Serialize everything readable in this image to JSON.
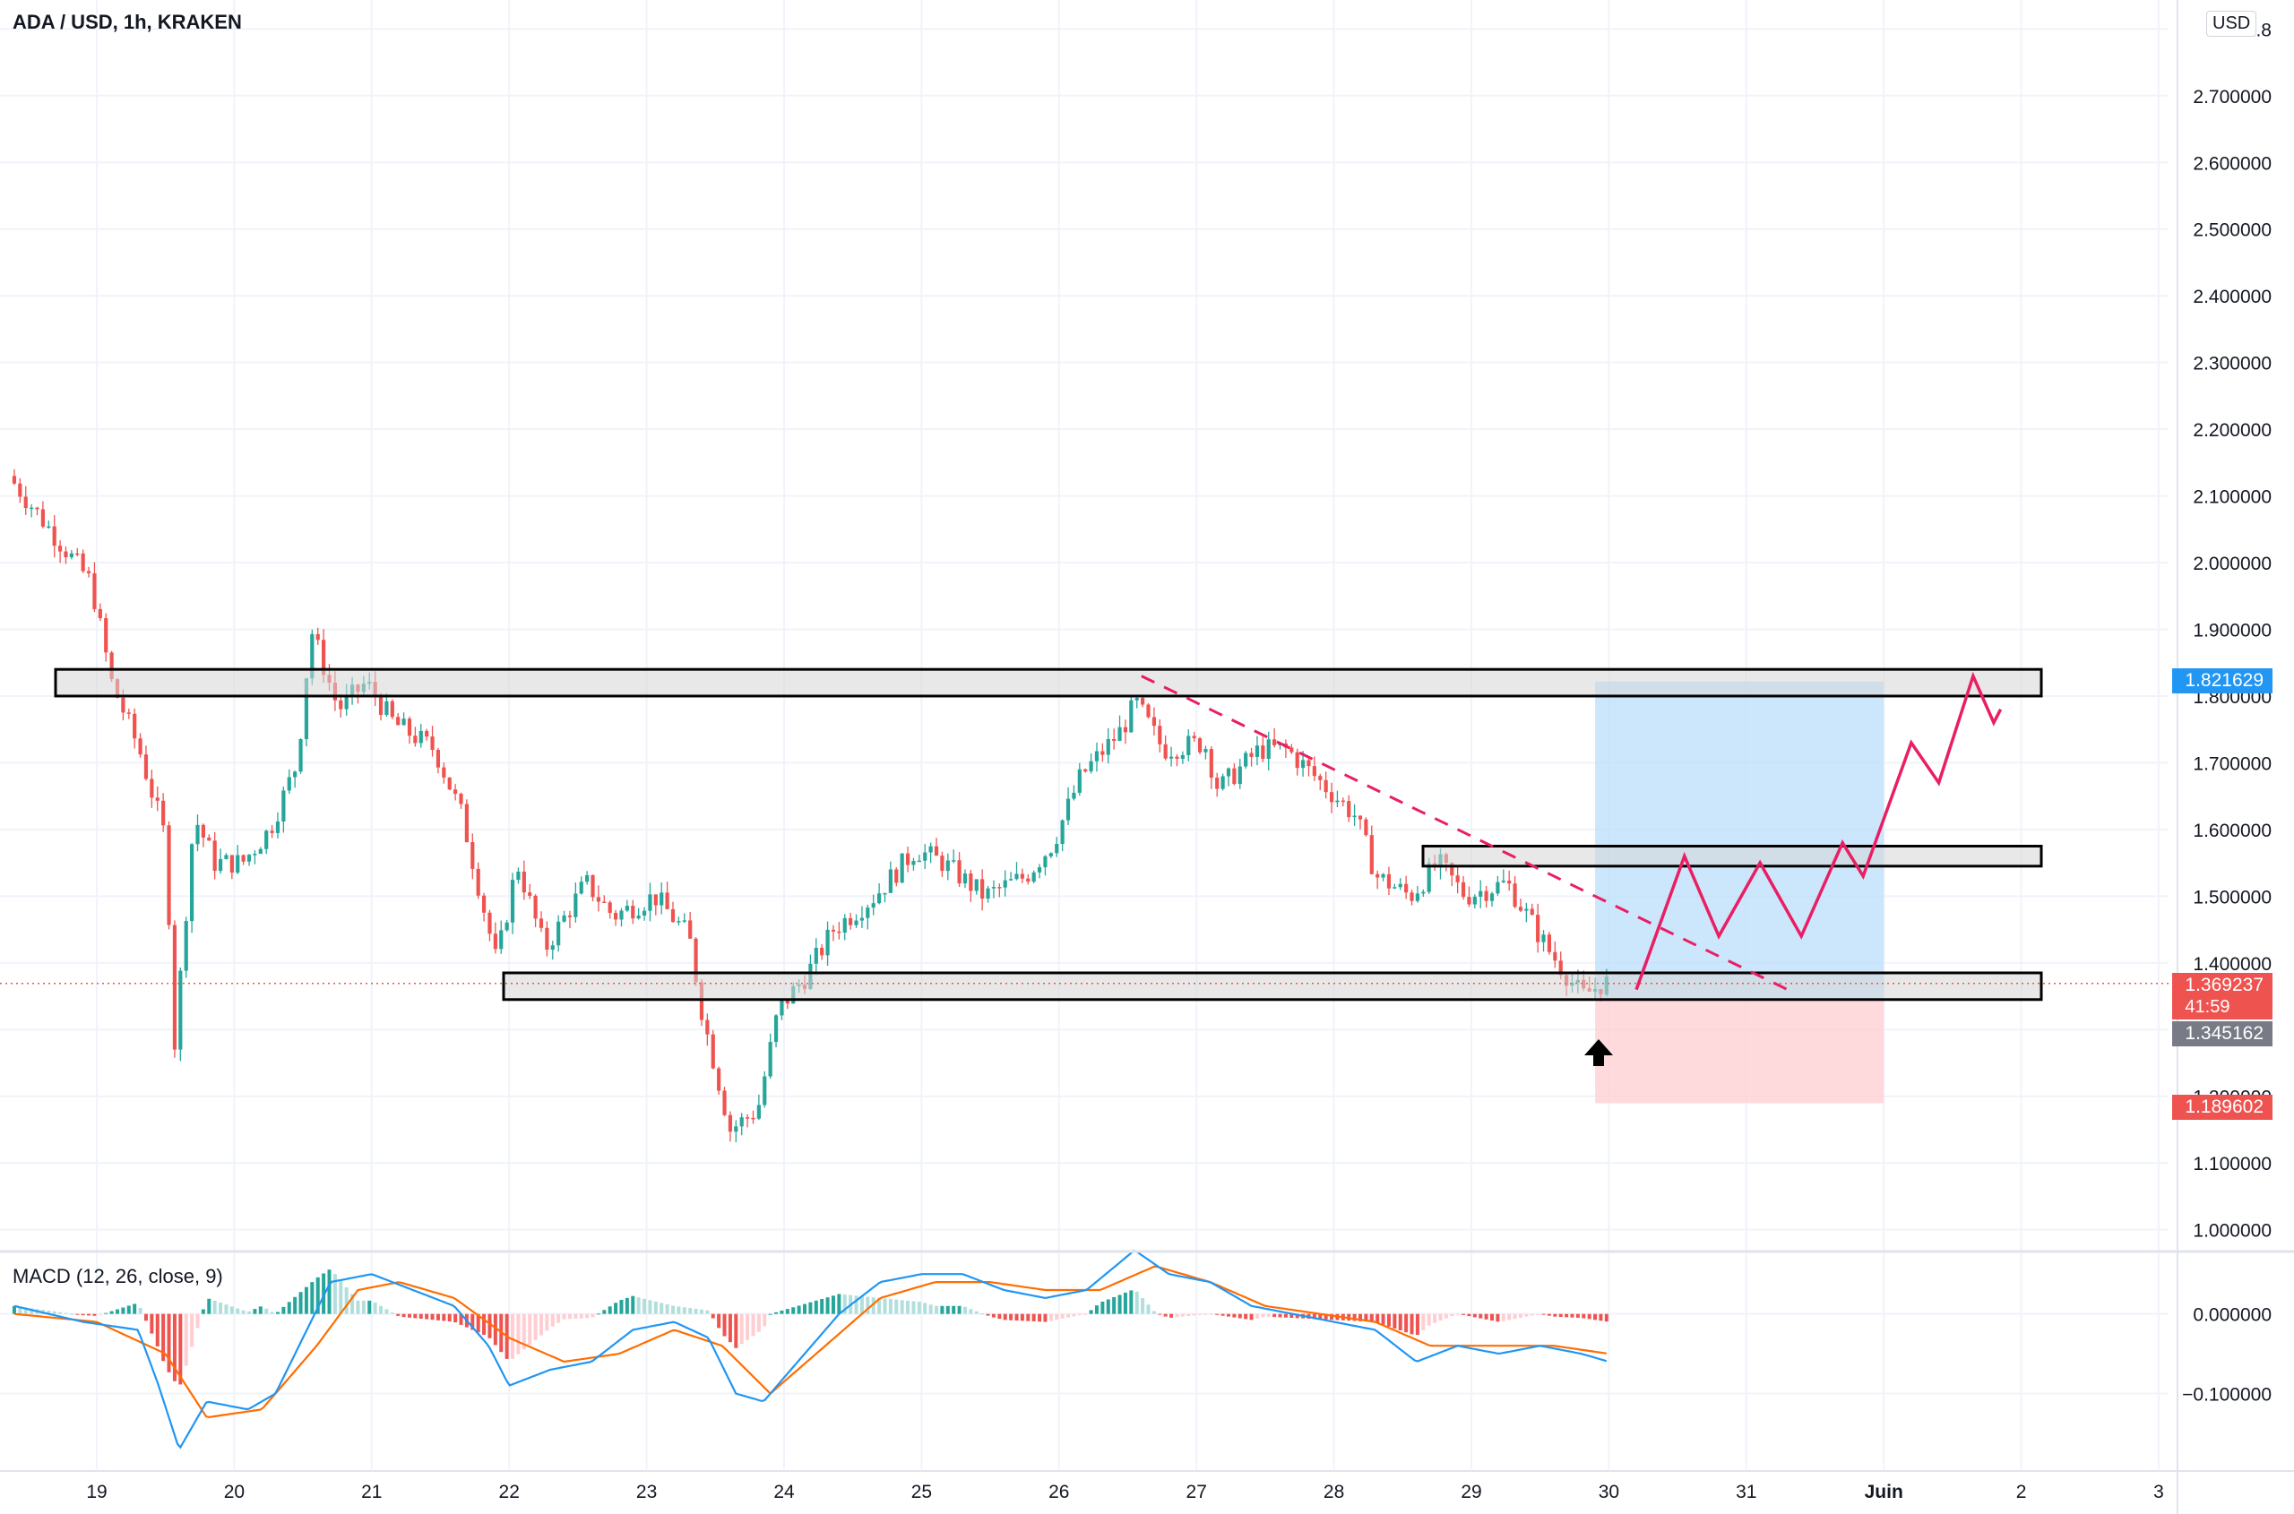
{
  "header": {
    "title": "ADA / USD, 1h, KRAKEN",
    "currency": "USD"
  },
  "macd_header": {
    "title": "MACD (12, 26, close, 9)"
  },
  "price_tags": {
    "take_profit": "1.821629",
    "current": "1.369237",
    "countdown": "41:59",
    "entry": "1.345162",
    "stop_loss": "1.189602"
  },
  "colors": {
    "up": "#26a69a",
    "down": "#ef5350",
    "profit_zone": "#bbdefb",
    "loss_zone": "#ffcdd2",
    "zone_box": "#d6d6d6",
    "projection": "#e91e63",
    "macd_line": "#2196f3",
    "signal_line": "#ff6d00"
  },
  "chart_data": [
    {
      "type": "candlestick",
      "title": "ADA / USD, 1h, KRAKEN",
      "x_ticks": [
        "19",
        "20",
        "21",
        "22",
        "23",
        "24",
        "25",
        "26",
        "27",
        "28",
        "29",
        "30",
        "31",
        "Juin",
        "2",
        "3"
      ],
      "y_ticks": [
        "1.000000",
        "1.100000",
        "1.200000",
        "1.300000",
        "1.400000",
        "1.500000",
        "1.600000",
        "1.700000",
        "1.800000",
        "1.900000",
        "2.000000",
        "2.100000",
        "2.200000",
        "2.300000",
        "2.400000",
        "2.500000",
        "2.600000",
        "2.700000",
        "2.8"
      ],
      "ylim": [
        0.97,
        2.83
      ],
      "xlim": [
        18.4,
        3.05
      ],
      "approx_close_path": [
        [
          18.4,
          2.13
        ],
        [
          18.7,
          2.05
        ],
        [
          19.0,
          1.97
        ],
        [
          19.15,
          1.82
        ],
        [
          19.35,
          1.72
        ],
        [
          19.55,
          1.58
        ],
        [
          19.6,
          1.26
        ],
        [
          19.75,
          1.62
        ],
        [
          19.9,
          1.55
        ],
        [
          20.1,
          1.55
        ],
        [
          20.3,
          1.6
        ],
        [
          20.5,
          1.7
        ],
        [
          20.6,
          1.9
        ],
        [
          20.8,
          1.78
        ],
        [
          21.0,
          1.82
        ],
        [
          21.2,
          1.76
        ],
        [
          21.5,
          1.72
        ],
        [
          21.7,
          1.62
        ],
        [
          21.95,
          1.4
        ],
        [
          22.1,
          1.55
        ],
        [
          22.3,
          1.42
        ],
        [
          22.6,
          1.52
        ],
        [
          22.8,
          1.47
        ],
        [
          23.1,
          1.5
        ],
        [
          23.35,
          1.44
        ],
        [
          23.45,
          1.32
        ],
        [
          23.65,
          1.15
        ],
        [
          23.85,
          1.18
        ],
        [
          24.0,
          1.33
        ],
        [
          24.2,
          1.38
        ],
        [
          24.4,
          1.45
        ],
        [
          24.7,
          1.5
        ],
        [
          25.0,
          1.57
        ],
        [
          25.2,
          1.55
        ],
        [
          25.5,
          1.5
        ],
        [
          25.8,
          1.53
        ],
        [
          26.0,
          1.58
        ],
        [
          26.2,
          1.68
        ],
        [
          26.5,
          1.75
        ],
        [
          26.6,
          1.79
        ],
        [
          26.8,
          1.72
        ],
        [
          27.1,
          1.73
        ],
        [
          27.2,
          1.66
        ],
        [
          27.5,
          1.72
        ],
        [
          27.7,
          1.72
        ],
        [
          27.9,
          1.68
        ],
        [
          28.2,
          1.62
        ],
        [
          28.35,
          1.53
        ],
        [
          28.6,
          1.5
        ],
        [
          28.8,
          1.55
        ],
        [
          29.0,
          1.5
        ],
        [
          29.3,
          1.52
        ],
        [
          29.6,
          1.42
        ],
        [
          29.85,
          1.35
        ],
        [
          30.0,
          1.37
        ]
      ],
      "horizontal_zones": [
        {
          "low": 1.8,
          "high": 1.84
        },
        {
          "low": 1.545,
          "high": 1.575
        },
        {
          "low": 1.345,
          "high": 1.385
        }
      ],
      "trendline": {
        "start": [
          26.6,
          1.83
        ],
        "end": [
          31.3,
          1.36
        ]
      },
      "long_position": {
        "entry": 1.345162,
        "target": 1.821629,
        "stop": 1.189602,
        "from": 29.9,
        "to": 32.0
      },
      "projection_path": [
        [
          30.2,
          1.36
        ],
        [
          30.55,
          1.56
        ],
        [
          30.8,
          1.44
        ],
        [
          31.1,
          1.55
        ],
        [
          31.4,
          1.44
        ],
        [
          31.7,
          1.58
        ],
        [
          31.85,
          1.53
        ],
        [
          32.2,
          1.73
        ],
        [
          32.4,
          1.67
        ],
        [
          32.65,
          1.83
        ],
        [
          32.8,
          1.76
        ],
        [
          32.85,
          1.78
        ]
      ]
    },
    {
      "type": "line",
      "title": "MACD (12, 26, close, 9)",
      "y_ticks": [
        "0.000000",
        "−0.100000"
      ],
      "ylim": [
        -0.195,
        0.075
      ],
      "series": [
        {
          "values": [
            [
              18.4,
              0.01
            ],
            [
              18.9,
              -0.01
            ],
            [
              19.3,
              -0.02
            ],
            [
              19.45,
              -0.09
            ],
            [
              19.6,
              -0.17
            ],
            [
              19.8,
              -0.11
            ],
            [
              20.1,
              -0.12
            ],
            [
              20.3,
              -0.1
            ],
            [
              20.5,
              -0.03
            ],
            [
              20.7,
              0.04
            ],
            [
              21.0,
              0.05
            ],
            [
              21.3,
              0.03
            ],
            [
              21.6,
              0.01
            ],
            [
              21.85,
              -0.04
            ],
            [
              22.0,
              -0.09
            ],
            [
              22.3,
              -0.07
            ],
            [
              22.6,
              -0.06
            ],
            [
              22.9,
              -0.02
            ],
            [
              23.2,
              -0.01
            ],
            [
              23.45,
              -0.03
            ],
            [
              23.65,
              -0.1
            ],
            [
              23.85,
              -0.11
            ],
            [
              24.1,
              -0.06
            ],
            [
              24.4,
              0.0
            ],
            [
              24.7,
              0.04
            ],
            [
              25.0,
              0.05
            ],
            [
              25.3,
              0.05
            ],
            [
              25.6,
              0.03
            ],
            [
              25.9,
              0.02
            ],
            [
              26.2,
              0.03
            ],
            [
              26.55,
              0.08
            ],
            [
              26.8,
              0.05
            ],
            [
              27.1,
              0.04
            ],
            [
              27.4,
              0.01
            ],
            [
              27.7,
              0.0
            ],
            [
              28.0,
              -0.01
            ],
            [
              28.3,
              -0.02
            ],
            [
              28.6,
              -0.06
            ],
            [
              28.9,
              -0.04
            ],
            [
              29.2,
              -0.05
            ],
            [
              29.5,
              -0.04
            ],
            [
              29.8,
              -0.05
            ],
            [
              30.0,
              -0.06
            ]
          ]
        },
        {
          "values": [
            [
              18.4,
              0.0
            ],
            [
              19.0,
              -0.01
            ],
            [
              19.5,
              -0.05
            ],
            [
              19.8,
              -0.13
            ],
            [
              20.2,
              -0.12
            ],
            [
              20.6,
              -0.04
            ],
            [
              20.9,
              0.03
            ],
            [
              21.2,
              0.04
            ],
            [
              21.6,
              0.02
            ],
            [
              22.0,
              -0.03
            ],
            [
              22.4,
              -0.06
            ],
            [
              22.8,
              -0.05
            ],
            [
              23.2,
              -0.02
            ],
            [
              23.55,
              -0.04
            ],
            [
              23.9,
              -0.1
            ],
            [
              24.3,
              -0.04
            ],
            [
              24.7,
              0.02
            ],
            [
              25.1,
              0.04
            ],
            [
              25.5,
              0.04
            ],
            [
              25.9,
              0.03
            ],
            [
              26.3,
              0.03
            ],
            [
              26.7,
              0.06
            ],
            [
              27.1,
              0.04
            ],
            [
              27.5,
              0.01
            ],
            [
              27.9,
              0.0
            ],
            [
              28.3,
              -0.01
            ],
            [
              28.7,
              -0.04
            ],
            [
              29.1,
              -0.04
            ],
            [
              29.6,
              -0.04
            ],
            [
              30.0,
              -0.05
            ]
          ]
        }
      ],
      "histogram": "approximate, alternating above/below zero, same x-range as price"
    }
  ]
}
